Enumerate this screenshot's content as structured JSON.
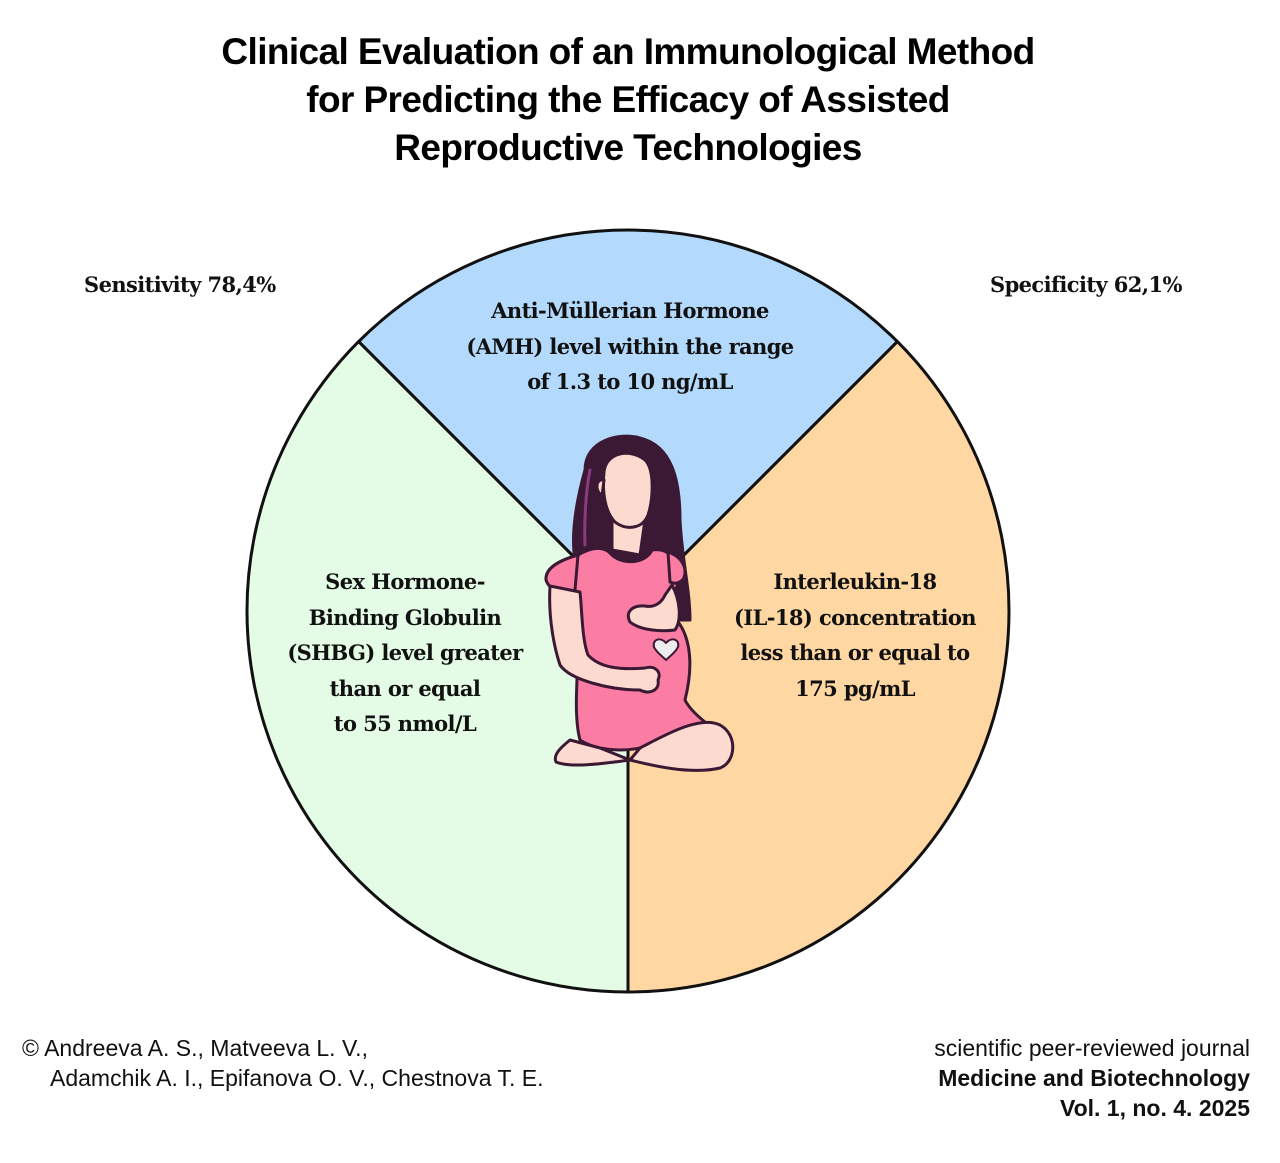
{
  "title": {
    "lines": [
      "Clinical Evaluation of an Immunological Method",
      "for Predicting the Efficacy of Assisted",
      "Reproductive Technologies"
    ]
  },
  "metrics": {
    "sensitivity": "Sensitivity 78,4%",
    "specificity": "Specificity 62,1%"
  },
  "segments": [
    {
      "id": "amh",
      "color": "#b3d9fc",
      "lines": [
        "Anti-Müllerian Hormone",
        "(AMH) level within the range",
        "of 1.3 to 10 ng/mL"
      ]
    },
    {
      "id": "shbg",
      "color": "#e4fce5",
      "lines": [
        "Sex Hormone-",
        "Binding Globulin",
        "(SHBG) level greater",
        "than or equal",
        "to 55 nmol/L"
      ]
    },
    {
      "id": "il18",
      "color": "#fed7a2",
      "lines": [
        "Interleukin-18",
        "(IL-18) concentration",
        "less than or equal to",
        "175 pg/mL"
      ]
    }
  ],
  "illustration": {
    "icon": "pregnant-woman-icon",
    "heart_icon": "heart-icon"
  },
  "footer": {
    "authors_line1": "© Andreeva A. S., Matveeva L. V.,",
    "authors_line2": "Adamchik A. I., Epifanova O. V., Chestnova T. E.",
    "journal_type": "scientific peer-reviewed journal",
    "journal_name": "Medicine and Biotechnology",
    "journal_issue": "Vol. 1, no. 4. 2025"
  }
}
